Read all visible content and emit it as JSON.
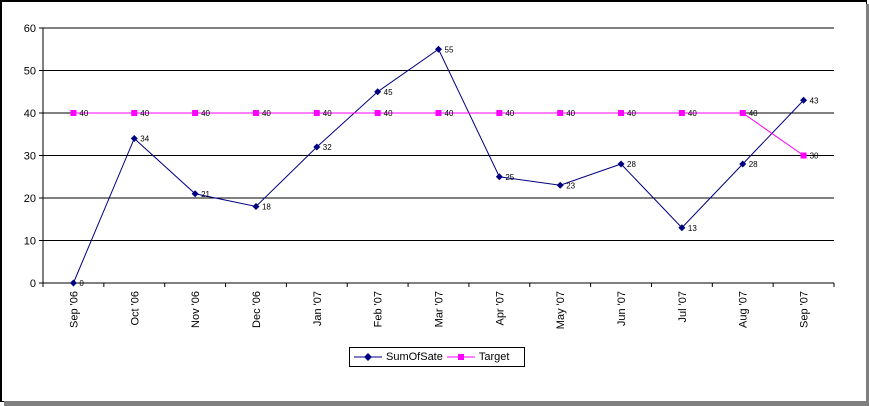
{
  "chart_data": {
    "type": "line",
    "categories": [
      "Sep '06",
      "Oct '06",
      "Nov '06",
      "Dec '06",
      "Jan '07",
      "Feb '07",
      "Mar '07",
      "Apr '07",
      "May '07",
      "Jun '07",
      "Jul '07",
      "Aug '07",
      "Sep '07"
    ],
    "series": [
      {
        "name": "SumOfSate",
        "values": [
          0,
          34,
          21,
          18,
          32,
          45,
          55,
          25,
          23,
          28,
          13,
          28,
          43
        ],
        "color": "#000080",
        "marker": "diamond"
      },
      {
        "name": "Target",
        "values": [
          40,
          40,
          40,
          40,
          40,
          40,
          40,
          40,
          40,
          40,
          40,
          40,
          30
        ],
        "color": "#FF00FF",
        "marker": "square"
      }
    ],
    "title": "",
    "xlabel": "",
    "ylabel": "",
    "ylim": [
      0,
      60
    ],
    "yticks": [
      0,
      10,
      20,
      30,
      40,
      50,
      60
    ],
    "grid": true,
    "legend_position": "bottom-center",
    "data_labels": true
  }
}
